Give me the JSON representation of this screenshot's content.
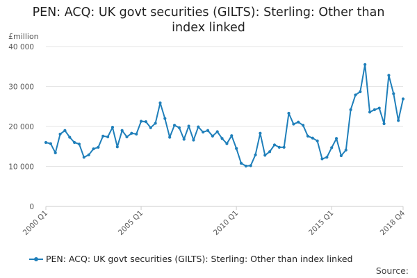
{
  "chart_data": {
    "type": "line",
    "title": "PEN: ACQ: UK govt securities (GILTS): Sterling: Other than index linked",
    "y_unit": "£million",
    "ylim": [
      0,
      40000
    ],
    "y_ticks": [
      0,
      10000,
      20000,
      30000,
      40000
    ],
    "y_tick_labels": [
      "0",
      "10 000",
      "20 000",
      "30 000",
      "40 000"
    ],
    "x_tick_labels": [
      "2000 Q1",
      "2005 Q1",
      "2010 Q1",
      "2015 Q1",
      "2018 Q4"
    ],
    "x_tick_indices": [
      0,
      20,
      40,
      60,
      75
    ],
    "grid": true,
    "legend_position": "bottom",
    "series": [
      {
        "name": "PEN: ACQ: UK govt securities (GILTS): Sterling: Other than index linked",
        "color": "#1f7fba",
        "x": [
          "2000 Q1",
          "2000 Q2",
          "2000 Q3",
          "2000 Q4",
          "2001 Q1",
          "2001 Q2",
          "2001 Q3",
          "2001 Q4",
          "2002 Q1",
          "2002 Q2",
          "2002 Q3",
          "2002 Q4",
          "2003 Q1",
          "2003 Q2",
          "2003 Q3",
          "2003 Q4",
          "2004 Q1",
          "2004 Q2",
          "2004 Q3",
          "2004 Q4",
          "2005 Q1",
          "2005 Q2",
          "2005 Q3",
          "2005 Q4",
          "2006 Q1",
          "2006 Q2",
          "2006 Q3",
          "2006 Q4",
          "2007 Q1",
          "2007 Q2",
          "2007 Q3",
          "2007 Q4",
          "2008 Q1",
          "2008 Q2",
          "2008 Q3",
          "2008 Q4",
          "2009 Q1",
          "2009 Q2",
          "2009 Q3",
          "2009 Q4",
          "2010 Q1",
          "2010 Q2",
          "2010 Q3",
          "2010 Q4",
          "2011 Q1",
          "2011 Q2",
          "2011 Q3",
          "2011 Q4",
          "2012 Q1",
          "2012 Q2",
          "2012 Q3",
          "2012 Q4",
          "2013 Q1",
          "2013 Q2",
          "2013 Q3",
          "2013 Q4",
          "2014 Q1",
          "2014 Q2",
          "2014 Q3",
          "2014 Q4",
          "2015 Q1",
          "2015 Q2",
          "2015 Q3",
          "2015 Q4",
          "2016 Q1",
          "2016 Q2",
          "2016 Q3",
          "2016 Q4",
          "2017 Q1",
          "2017 Q2",
          "2017 Q3",
          "2017 Q4",
          "2018 Q1",
          "2018 Q2",
          "2018 Q3",
          "2018 Q4"
        ],
        "values": [
          16000,
          15700,
          13400,
          18100,
          19000,
          17300,
          16000,
          15600,
          12300,
          12900,
          14400,
          14800,
          17600,
          17400,
          19800,
          14900,
          19000,
          17400,
          18300,
          18100,
          21300,
          21200,
          19700,
          20800,
          25900,
          22000,
          17300,
          20300,
          19700,
          16800,
          20100,
          16600,
          19900,
          18600,
          19000,
          17600,
          18700,
          17000,
          15700,
          17700,
          14500,
          10800,
          10100,
          10200,
          12900,
          18300,
          12800,
          13700,
          15400,
          14800,
          14800,
          23300,
          20600,
          21100,
          20300,
          17600,
          17100,
          16400,
          11900,
          12300,
          14700,
          17000,
          12700,
          14100,
          24200,
          27900,
          28700,
          35500,
          23600,
          24200,
          24600,
          20700,
          32800,
          28200,
          21500,
          26900
        ]
      }
    ]
  },
  "source_label": "Source:"
}
